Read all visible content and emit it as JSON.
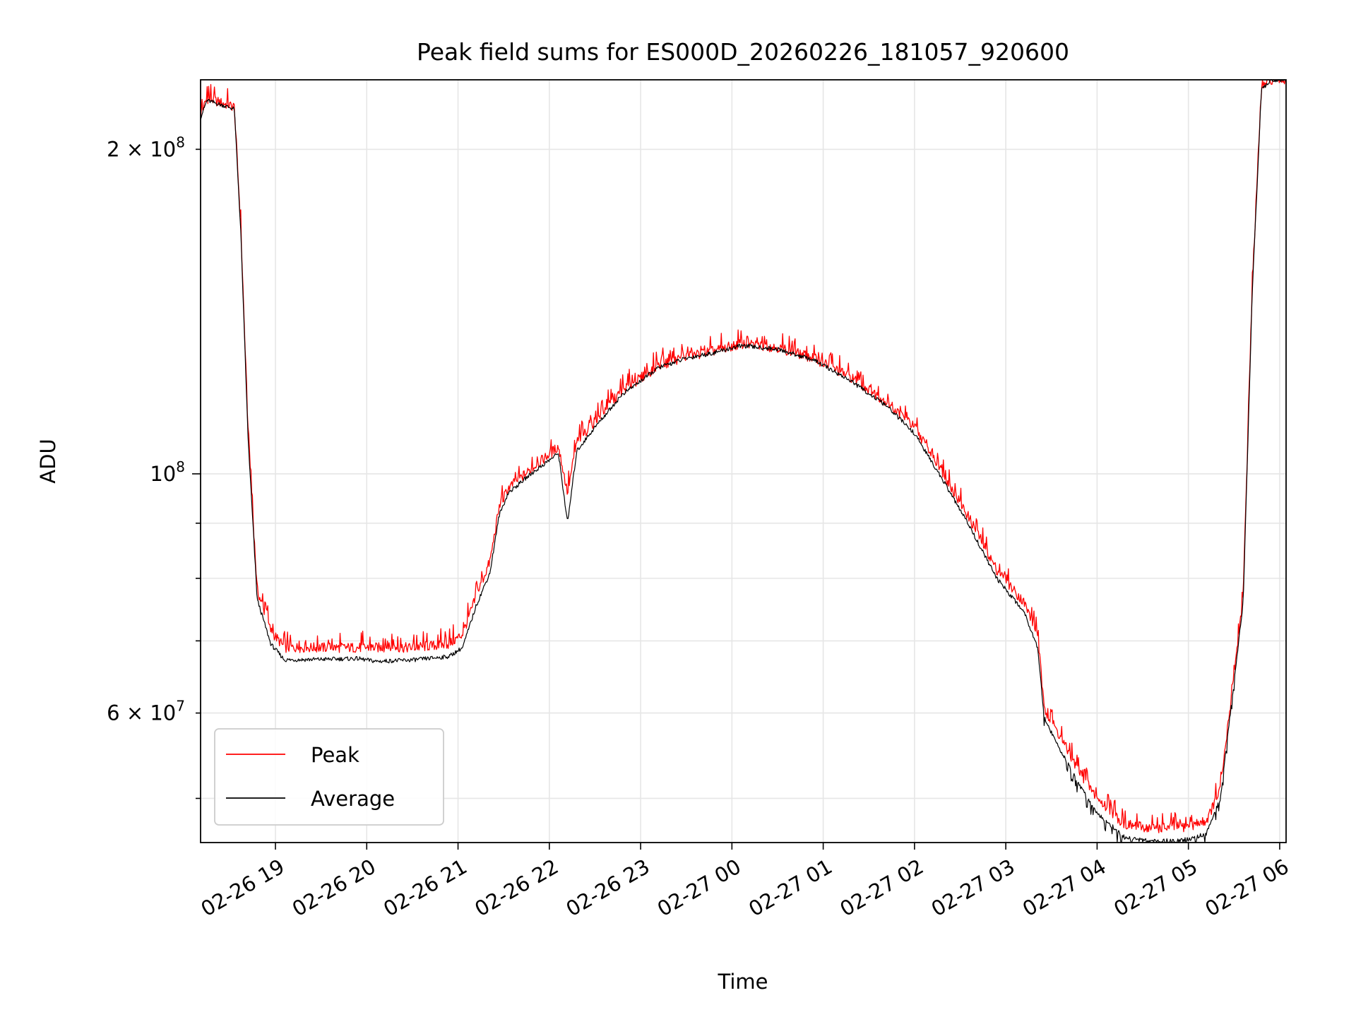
{
  "chart_data": {
    "type": "line",
    "title": "Peak field sums for ES000D_20260226_181057_920600",
    "xlabel": "Time",
    "ylabel": "ADU",
    "yscale": "log",
    "ylim": [
      45500000,
      232000000
    ],
    "xlim_hours": [
      18.18,
      30.07
    ],
    "grid": true,
    "legend_position": "lower-left",
    "x_ticks": [
      {
        "hour": 19,
        "label": "02-26 19"
      },
      {
        "hour": 20,
        "label": "02-26 20"
      },
      {
        "hour": 21,
        "label": "02-26 21"
      },
      {
        "hour": 22,
        "label": "02-26 22"
      },
      {
        "hour": 23,
        "label": "02-26 23"
      },
      {
        "hour": 24,
        "label": "02-27 00"
      },
      {
        "hour": 25,
        "label": "02-27 01"
      },
      {
        "hour": 26,
        "label": "02-27 02"
      },
      {
        "hour": 27,
        "label": "02-27 03"
      },
      {
        "hour": 28,
        "label": "02-27 04"
      },
      {
        "hour": 29,
        "label": "02-27 05"
      },
      {
        "hour": 30,
        "label": "02-27 06"
      }
    ],
    "y_major_ticks": [
      {
        "value": 100000000,
        "base": "10",
        "exp": "8"
      }
    ],
    "y_minor_ticks": [
      {
        "value": 60000000,
        "mantissa": "6",
        "exp": "7"
      },
      {
        "value": 200000000,
        "mantissa": "2",
        "exp": "8"
      }
    ],
    "y_minor_unlabeled": [
      50000000,
      70000000,
      80000000,
      90000000
    ],
    "series": [
      {
        "name": "Peak",
        "color": "#ff0000",
        "hours": [
          18.18,
          18.25,
          18.4,
          18.55,
          18.62,
          18.7,
          18.8,
          18.95,
          19.1,
          19.5,
          19.9,
          20.1,
          20.5,
          20.9,
          21.05,
          21.2,
          21.35,
          21.45,
          21.55,
          21.8,
          22.1,
          22.2,
          22.3,
          22.5,
          22.8,
          23.2,
          23.5,
          23.8,
          24.1,
          24.5,
          24.9,
          25.3,
          25.7,
          26.0,
          26.3,
          26.6,
          26.9,
          27.2,
          27.35,
          27.42,
          27.5,
          27.8,
          28.0,
          28.3,
          28.6,
          28.85,
          29.0,
          29.2,
          29.35,
          29.45,
          29.6,
          29.7,
          29.8,
          29.9,
          30.07
        ],
        "values": [
          215000000,
          223000000,
          221000000,
          219000000,
          170000000,
          110000000,
          78000000,
          71500000,
          69000000,
          69000000,
          69000000,
          69000000,
          69000000,
          69500000,
          71000000,
          77000000,
          83000000,
          93000000,
          97000000,
          101000000,
          106000000,
          96000000,
          107000000,
          112000000,
          119500000,
          126000000,
          128500000,
          130000000,
          132000000,
          131000000,
          128000000,
          123000000,
          116500000,
          110500000,
          100500000,
          91000000,
          81500000,
          76000000,
          71000000,
          60500000,
          59000000,
          53000000,
          50000000,
          47300000,
          46900000,
          47000000,
          47100000,
          47700000,
          51000000,
          60000000,
          77000000,
          150000000,
          228000000,
          232000000,
          232000000
        ]
      },
      {
        "name": "Average",
        "color": "#000000",
        "hours": [
          18.18,
          18.25,
          18.4,
          18.55,
          18.62,
          18.7,
          18.8,
          18.95,
          19.1,
          19.5,
          19.9,
          20.1,
          20.5,
          20.9,
          21.05,
          21.2,
          21.35,
          21.45,
          21.55,
          21.8,
          22.1,
          22.2,
          22.3,
          22.5,
          22.8,
          23.2,
          23.5,
          23.8,
          24.1,
          24.5,
          24.9,
          25.3,
          25.7,
          26.0,
          26.3,
          26.6,
          26.9,
          27.2,
          27.35,
          27.42,
          27.5,
          27.8,
          28.0,
          28.3,
          28.6,
          28.85,
          29.0,
          29.2,
          29.35,
          29.45,
          29.6,
          29.7,
          29.8,
          29.9,
          30.07
        ],
        "values": [
          214000000,
          222000000,
          220000000,
          218000000,
          168000000,
          108000000,
          76500000,
          69500000,
          67200000,
          67300000,
          67400000,
          67000000,
          67200000,
          67700000,
          69000000,
          75500000,
          81000000,
          91500000,
          96000000,
          100000000,
          104500000,
          90000000,
          105000000,
          110500000,
          118500000,
          125500000,
          128000000,
          129500000,
          131500000,
          130500000,
          127500000,
          122000000,
          115500000,
          109000000,
          99000000,
          89500000,
          80000000,
          74500000,
          69000000,
          59500000,
          57500000,
          51500000,
          48500000,
          46000000,
          45600000,
          45700000,
          45800000,
          46400000,
          50000000,
          59000000,
          76000000,
          148000000,
          227000000,
          232000000,
          232000000
        ]
      }
    ]
  }
}
